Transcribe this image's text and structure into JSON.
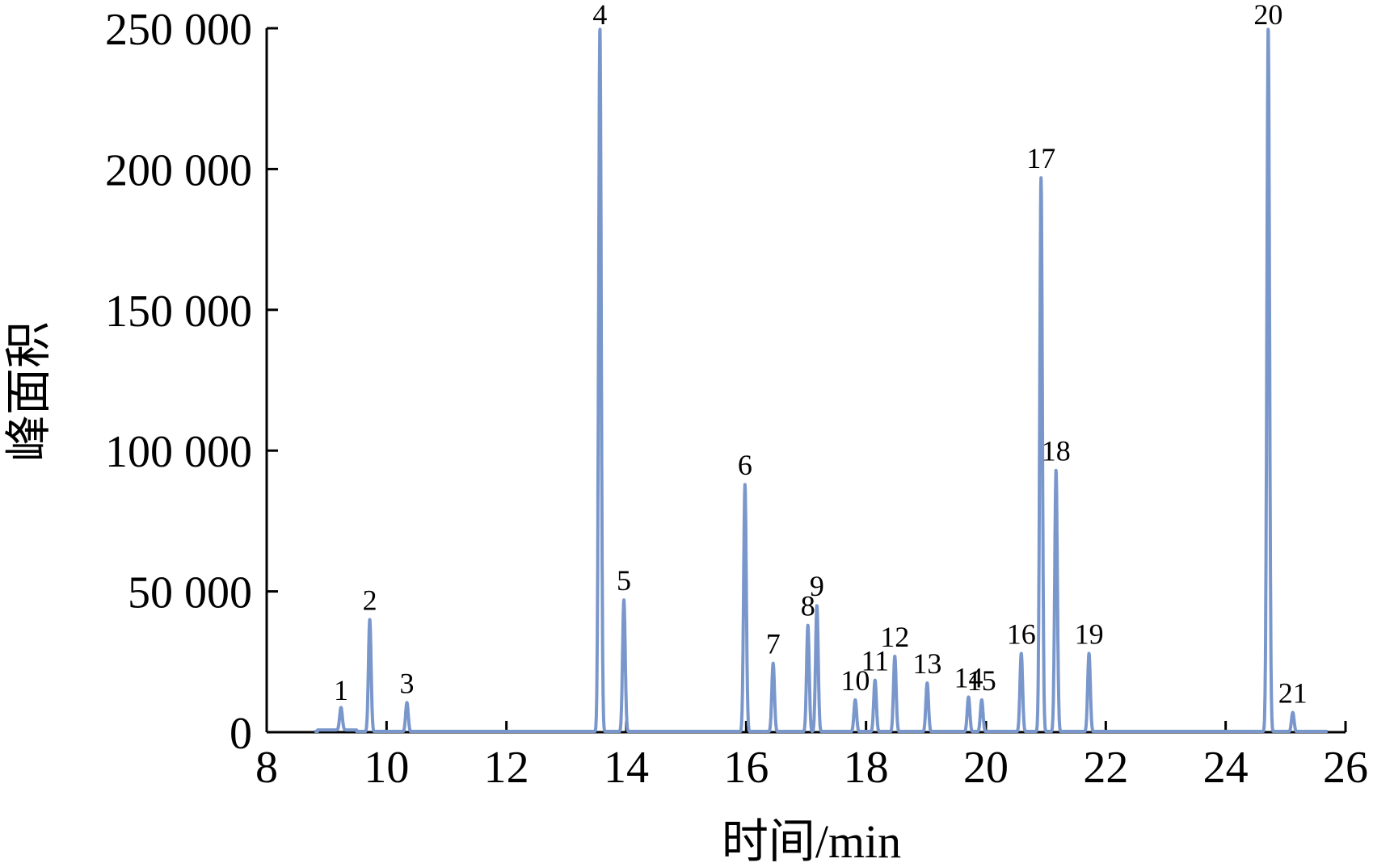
{
  "chart_data": {
    "type": "line",
    "title": "",
    "xlabel": "时间/min",
    "ylabel": "峰面积",
    "xlim": [
      8,
      26
    ],
    "ylim": [
      0,
      250000
    ],
    "x_ticks": [
      8,
      10,
      12,
      14,
      16,
      18,
      20,
      22,
      24,
      26
    ],
    "y_ticks": [
      0,
      50000,
      100000,
      150000,
      200000,
      250000
    ],
    "x_tick_labels": [
      "8",
      "10",
      "12",
      "14",
      "16",
      "18",
      "20",
      "22",
      "24",
      "26"
    ],
    "y_tick_labels": [
      "0",
      "50 000",
      "100 000",
      "150 000",
      "200 000",
      "250 000"
    ],
    "grid": false,
    "legend": "none",
    "line_color": "#7a97cc",
    "series": [
      {
        "peaks": [
          {
            "label": "1",
            "x": 9.24,
            "y": 8000
          },
          {
            "label": "2",
            "x": 9.72,
            "y": 40000
          },
          {
            "label": "3",
            "x": 10.34,
            "y": 10500
          },
          {
            "label": "4",
            "x": 13.56,
            "y": 250000
          },
          {
            "label": "5",
            "x": 13.96,
            "y": 47000
          },
          {
            "label": "6",
            "x": 15.98,
            "y": 88000
          },
          {
            "label": "7",
            "x": 16.45,
            "y": 24500
          },
          {
            "label": "8",
            "x": 17.03,
            "y": 38000
          },
          {
            "label": "9",
            "x": 17.18,
            "y": 45000
          },
          {
            "label": "10",
            "x": 17.82,
            "y": 11500
          },
          {
            "label": "11",
            "x": 18.15,
            "y": 18500
          },
          {
            "label": "12",
            "x": 18.48,
            "y": 27000
          },
          {
            "label": "13",
            "x": 19.02,
            "y": 17500
          },
          {
            "label": "14",
            "x": 19.71,
            "y": 12500
          },
          {
            "label": "15",
            "x": 19.93,
            "y": 11500
          },
          {
            "label": "16",
            "x": 20.59,
            "y": 28000
          },
          {
            "label": "17",
            "x": 20.92,
            "y": 197000
          },
          {
            "label": "18",
            "x": 21.17,
            "y": 93000
          },
          {
            "label": "19",
            "x": 21.72,
            "y": 28000
          },
          {
            "label": "20",
            "x": 24.71,
            "y": 250000
          },
          {
            "label": "21",
            "x": 25.12,
            "y": 7000
          }
        ]
      }
    ]
  }
}
